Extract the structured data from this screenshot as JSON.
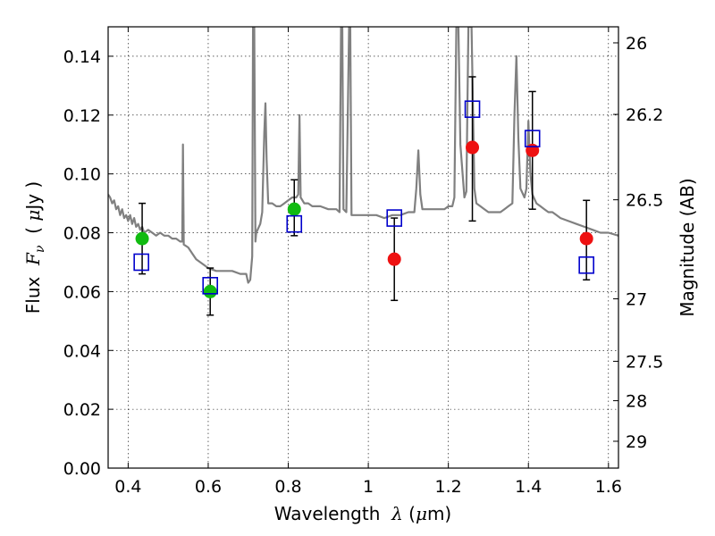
{
  "chart_data": {
    "type": "scatter",
    "xlabel": {
      "prefix": "Wavelength  ",
      "symbol": "λ",
      "unit_open": " (",
      "unit_sym": "μ",
      "unit_close": "m)"
    },
    "ylabel": {
      "prefix": "Flux  ",
      "symbol": "F",
      "sub": "ν",
      "unit_open": "  ( ",
      "unit_sym": "μ",
      "unit_close": "Jy )"
    },
    "y2label": "Magnitude (AB)",
    "xlim": [
      0.35,
      1.625
    ],
    "ylim": [
      0.0,
      0.15
    ],
    "xticks": [
      {
        "v": 0.4,
        "label": "0.4"
      },
      {
        "v": 0.6,
        "label": "0.6"
      },
      {
        "v": 0.8,
        "label": "0.8"
      },
      {
        "v": 1.0,
        "label": "1"
      },
      {
        "v": 1.2,
        "label": "1.2"
      },
      {
        "v": 1.4,
        "label": "1.4"
      },
      {
        "v": 1.6,
        "label": "1.6"
      }
    ],
    "yticks": [
      {
        "v": 0.0,
        "label": "0.00"
      },
      {
        "v": 0.02,
        "label": "0.02"
      },
      {
        "v": 0.04,
        "label": "0.04"
      },
      {
        "v": 0.06,
        "label": "0.06"
      },
      {
        "v": 0.08,
        "label": "0.08"
      },
      {
        "v": 0.1,
        "label": "0.10"
      },
      {
        "v": 0.12,
        "label": "0.12"
      },
      {
        "v": 0.14,
        "label": "0.14"
      }
    ],
    "y2ticks": [
      {
        "mag": 26,
        "label": "26"
      },
      {
        "mag": 26.2,
        "label": "26.2"
      },
      {
        "mag": 26.5,
        "label": "26.5"
      },
      {
        "mag": 27,
        "label": "27"
      },
      {
        "mag": 27.5,
        "label": "27.5"
      },
      {
        "mag": 28,
        "label": "28"
      },
      {
        "mag": 29,
        "label": "29"
      }
    ],
    "grid": true,
    "colors": {
      "spectrum": "#808080",
      "green": "#11bb11",
      "red": "#ee1111",
      "model": "#0000cc",
      "error": "#000000"
    },
    "spectrum": [
      [
        0.35,
        0.093
      ],
      [
        0.355,
        0.092
      ],
      [
        0.36,
        0.09
      ],
      [
        0.365,
        0.091
      ],
      [
        0.37,
        0.088
      ],
      [
        0.375,
        0.089
      ],
      [
        0.38,
        0.086
      ],
      [
        0.385,
        0.088
      ],
      [
        0.39,
        0.085
      ],
      [
        0.395,
        0.086
      ],
      [
        0.4,
        0.084
      ],
      [
        0.405,
        0.086
      ],
      [
        0.41,
        0.083
      ],
      [
        0.415,
        0.085
      ],
      [
        0.42,
        0.082
      ],
      [
        0.425,
        0.083
      ],
      [
        0.43,
        0.081
      ],
      [
        0.435,
        0.082
      ],
      [
        0.44,
        0.08
      ],
      [
        0.45,
        0.081
      ],
      [
        0.46,
        0.08
      ],
      [
        0.47,
        0.079
      ],
      [
        0.48,
        0.08
      ],
      [
        0.49,
        0.079
      ],
      [
        0.5,
        0.079
      ],
      [
        0.51,
        0.078
      ],
      [
        0.52,
        0.078
      ],
      [
        0.53,
        0.077
      ],
      [
        0.535,
        0.077
      ],
      [
        0.537,
        0.11
      ],
      [
        0.539,
        0.076
      ],
      [
        0.55,
        0.075
      ],
      [
        0.56,
        0.073
      ],
      [
        0.57,
        0.071
      ],
      [
        0.58,
        0.07
      ],
      [
        0.59,
        0.069
      ],
      [
        0.6,
        0.068
      ],
      [
        0.62,
        0.067
      ],
      [
        0.64,
        0.067
      ],
      [
        0.66,
        0.067
      ],
      [
        0.68,
        0.066
      ],
      [
        0.695,
        0.066
      ],
      [
        0.7,
        0.063
      ],
      [
        0.705,
        0.064
      ],
      [
        0.71,
        0.072
      ],
      [
        0.712,
        0.15
      ],
      [
        0.715,
        0.15
      ],
      [
        0.718,
        0.077
      ],
      [
        0.72,
        0.08
      ],
      [
        0.73,
        0.083
      ],
      [
        0.735,
        0.087
      ],
      [
        0.74,
        0.114
      ],
      [
        0.743,
        0.124
      ],
      [
        0.746,
        0.105
      ],
      [
        0.75,
        0.09
      ],
      [
        0.76,
        0.09
      ],
      [
        0.77,
        0.089
      ],
      [
        0.78,
        0.089
      ],
      [
        0.79,
        0.09
      ],
      [
        0.8,
        0.091
      ],
      [
        0.81,
        0.092
      ],
      [
        0.82,
        0.092
      ],
      [
        0.825,
        0.093
      ],
      [
        0.828,
        0.12
      ],
      [
        0.831,
        0.092
      ],
      [
        0.84,
        0.09
      ],
      [
        0.85,
        0.09
      ],
      [
        0.86,
        0.089
      ],
      [
        0.88,
        0.089
      ],
      [
        0.9,
        0.088
      ],
      [
        0.92,
        0.088
      ],
      [
        0.928,
        0.087
      ],
      [
        0.932,
        0.15
      ],
      [
        0.935,
        0.15
      ],
      [
        0.938,
        0.088
      ],
      [
        0.945,
        0.087
      ],
      [
        0.952,
        0.15
      ],
      [
        0.955,
        0.15
      ],
      [
        0.958,
        0.086
      ],
      [
        0.97,
        0.086
      ],
      [
        0.98,
        0.086
      ],
      [
        1.0,
        0.086
      ],
      [
        1.02,
        0.086
      ],
      [
        1.04,
        0.085
      ],
      [
        1.06,
        0.086
      ],
      [
        1.08,
        0.086
      ],
      [
        1.1,
        0.087
      ],
      [
        1.115,
        0.087
      ],
      [
        1.12,
        0.095
      ],
      [
        1.125,
        0.108
      ],
      [
        1.13,
        0.093
      ],
      [
        1.135,
        0.088
      ],
      [
        1.15,
        0.088
      ],
      [
        1.17,
        0.088
      ],
      [
        1.19,
        0.088
      ],
      [
        1.2,
        0.089
      ],
      [
        1.21,
        0.089
      ],
      [
        1.215,
        0.092
      ],
      [
        1.22,
        0.15
      ],
      [
        1.225,
        0.15
      ],
      [
        1.23,
        0.11
      ],
      [
        1.24,
        0.092
      ],
      [
        1.245,
        0.094
      ],
      [
        1.25,
        0.15
      ],
      [
        1.258,
        0.15
      ],
      [
        1.265,
        0.095
      ],
      [
        1.27,
        0.09
      ],
      [
        1.28,
        0.089
      ],
      [
        1.29,
        0.088
      ],
      [
        1.3,
        0.087
      ],
      [
        1.31,
        0.087
      ],
      [
        1.32,
        0.087
      ],
      [
        1.33,
        0.087
      ],
      [
        1.34,
        0.088
      ],
      [
        1.35,
        0.089
      ],
      [
        1.36,
        0.09
      ],
      [
        1.365,
        0.12
      ],
      [
        1.37,
        0.14
      ],
      [
        1.375,
        0.112
      ],
      [
        1.38,
        0.095
      ],
      [
        1.39,
        0.092
      ],
      [
        1.395,
        0.095
      ],
      [
        1.4,
        0.118
      ],
      [
        1.405,
        0.1
      ],
      [
        1.41,
        0.093
      ],
      [
        1.42,
        0.09
      ],
      [
        1.43,
        0.089
      ],
      [
        1.44,
        0.088
      ],
      [
        1.45,
        0.087
      ],
      [
        1.46,
        0.087
      ],
      [
        1.47,
        0.086
      ],
      [
        1.48,
        0.085
      ],
      [
        1.5,
        0.084
      ],
      [
        1.52,
        0.083
      ],
      [
        1.54,
        0.082
      ],
      [
        1.56,
        0.081
      ],
      [
        1.58,
        0.08
      ],
      [
        1.6,
        0.08
      ],
      [
        1.625,
        0.079
      ]
    ],
    "series": [
      {
        "marker": "circle-green",
        "points": [
          {
            "x": 0.435,
            "y": 0.078
          },
          {
            "x": 0.605,
            "y": 0.06
          },
          {
            "x": 0.815,
            "y": 0.088
          }
        ]
      },
      {
        "marker": "circle-red",
        "points": [
          {
            "x": 1.065,
            "y": 0.071
          },
          {
            "x": 1.26,
            "y": 0.109
          },
          {
            "x": 1.41,
            "y": 0.108
          },
          {
            "x": 1.545,
            "y": 0.078
          }
        ]
      },
      {
        "marker": "square-open-blue",
        "points": [
          {
            "x": 0.433,
            "y": 0.07
          },
          {
            "x": 0.605,
            "y": 0.062
          },
          {
            "x": 0.815,
            "y": 0.083
          },
          {
            "x": 1.065,
            "y": 0.085
          },
          {
            "x": 1.26,
            "y": 0.122
          },
          {
            "x": 1.41,
            "y": 0.112
          },
          {
            "x": 1.545,
            "y": 0.069
          }
        ]
      }
    ],
    "errorbars": [
      {
        "x": 0.435,
        "lo": 0.066,
        "hi": 0.09
      },
      {
        "x": 0.605,
        "lo": 0.052,
        "hi": 0.068
      },
      {
        "x": 0.815,
        "lo": 0.079,
        "hi": 0.098
      },
      {
        "x": 1.065,
        "lo": 0.057,
        "hi": 0.085
      },
      {
        "x": 1.26,
        "lo": 0.084,
        "hi": 0.133
      },
      {
        "x": 1.41,
        "lo": 0.088,
        "hi": 0.128
      },
      {
        "x": 1.545,
        "lo": 0.064,
        "hi": 0.091
      }
    ]
  }
}
